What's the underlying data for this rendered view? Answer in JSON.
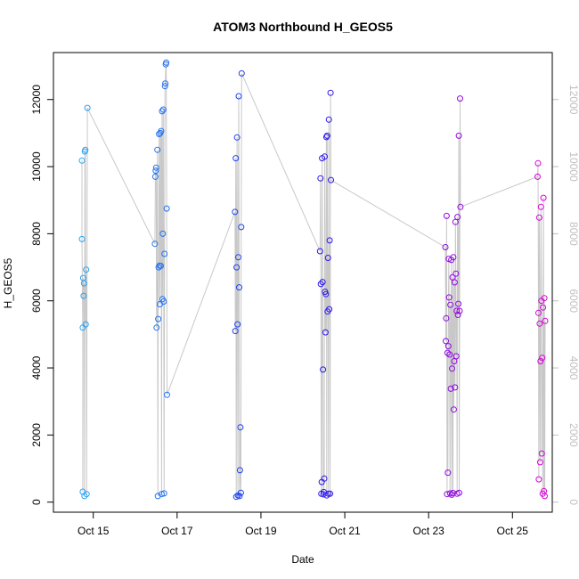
{
  "chart_data": {
    "type": "scatter",
    "title": "ATOM3 Northbound H_GEOS5",
    "xlabel": "Date",
    "ylabel": "H_GEOS5",
    "x_unit": "days since Oct 15",
    "xlim": [
      -0.95,
      10.95
    ],
    "ylim": [
      -300,
      13400
    ],
    "x_ticks": [
      {
        "value": 0,
        "label": "Oct 15"
      },
      {
        "value": 2,
        "label": "Oct 17"
      },
      {
        "value": 4,
        "label": "Oct 19"
      },
      {
        "value": 6,
        "label": "Oct 21"
      },
      {
        "value": 8,
        "label": "Oct 23"
      },
      {
        "value": 10,
        "label": "Oct 25"
      }
    ],
    "y_ticks": [
      0,
      2000,
      4000,
      6000,
      8000,
      10000,
      12000
    ],
    "right_axis_ticks": [
      0,
      2000,
      4000,
      6000,
      8000,
      10000,
      12000
    ],
    "line_color": "#c8c8c8",
    "colors": {
      "start": "#29b6f6",
      "mid": "#1a1aee",
      "end": "#e000d8"
    },
    "points": [
      {
        "x": -0.27,
        "y": 10180
      },
      {
        "x": -0.27,
        "y": 7840
      },
      {
        "x": -0.25,
        "y": 5200
      },
      {
        "x": -0.25,
        "y": 310
      },
      {
        "x": -0.24,
        "y": 6680
      },
      {
        "x": -0.23,
        "y": 6150
      },
      {
        "x": -0.22,
        "y": 6520
      },
      {
        "x": -0.21,
        "y": 180
      },
      {
        "x": -0.2,
        "y": 10450
      },
      {
        "x": -0.19,
        "y": 10500
      },
      {
        "x": -0.18,
        "y": 5300
      },
      {
        "x": -0.17,
        "y": 6930
      },
      {
        "x": -0.16,
        "y": 240
      },
      {
        "x": -0.14,
        "y": 11750
      },
      {
        "x": 1.47,
        "y": 7700
      },
      {
        "x": 1.48,
        "y": 9700
      },
      {
        "x": 1.49,
        "y": 9880
      },
      {
        "x": 1.5,
        "y": 9970
      },
      {
        "x": 1.51,
        "y": 5200
      },
      {
        "x": 1.53,
        "y": 10500
      },
      {
        "x": 1.54,
        "y": 180
      },
      {
        "x": 1.55,
        "y": 5460
      },
      {
        "x": 1.56,
        "y": 7000
      },
      {
        "x": 1.57,
        "y": 10970
      },
      {
        "x": 1.58,
        "y": 7050
      },
      {
        "x": 1.59,
        "y": 5900
      },
      {
        "x": 1.6,
        "y": 11000
      },
      {
        "x": 1.61,
        "y": 7040
      },
      {
        "x": 1.62,
        "y": 11060
      },
      {
        "x": 1.63,
        "y": 240
      },
      {
        "x": 1.64,
        "y": 11650
      },
      {
        "x": 1.65,
        "y": 6050
      },
      {
        "x": 1.66,
        "y": 8000
      },
      {
        "x": 1.67,
        "y": 11700
      },
      {
        "x": 1.68,
        "y": 5980
      },
      {
        "x": 1.69,
        "y": 260
      },
      {
        "x": 1.7,
        "y": 7400
      },
      {
        "x": 1.71,
        "y": 12400
      },
      {
        "x": 1.72,
        "y": 12480
      },
      {
        "x": 1.73,
        "y": 13050
      },
      {
        "x": 1.74,
        "y": 13100
      },
      {
        "x": 1.75,
        "y": 8750
      },
      {
        "x": 1.76,
        "y": 3200
      },
      {
        "x": 3.38,
        "y": 8650
      },
      {
        "x": 3.39,
        "y": 5100
      },
      {
        "x": 3.4,
        "y": 10250
      },
      {
        "x": 3.41,
        "y": 160
      },
      {
        "x": 3.42,
        "y": 7000
      },
      {
        "x": 3.43,
        "y": 10870
      },
      {
        "x": 3.44,
        "y": 5300
      },
      {
        "x": 3.45,
        "y": 200
      },
      {
        "x": 3.46,
        "y": 7300
      },
      {
        "x": 3.47,
        "y": 12100
      },
      {
        "x": 3.48,
        "y": 6400
      },
      {
        "x": 3.49,
        "y": 180
      },
      {
        "x": 3.5,
        "y": 950
      },
      {
        "x": 3.51,
        "y": 2230
      },
      {
        "x": 3.52,
        "y": 280
      },
      {
        "x": 3.53,
        "y": 8200
      },
      {
        "x": 3.54,
        "y": 12780
      },
      {
        "x": 5.41,
        "y": 7480
      },
      {
        "x": 5.42,
        "y": 9650
      },
      {
        "x": 5.43,
        "y": 6500
      },
      {
        "x": 5.44,
        "y": 250
      },
      {
        "x": 5.45,
        "y": 600
      },
      {
        "x": 5.46,
        "y": 10250
      },
      {
        "x": 5.47,
        "y": 6560
      },
      {
        "x": 5.48,
        "y": 3950
      },
      {
        "x": 5.49,
        "y": 230
      },
      {
        "x": 5.5,
        "y": 300
      },
      {
        "x": 5.51,
        "y": 700
      },
      {
        "x": 5.52,
        "y": 10300
      },
      {
        "x": 5.53,
        "y": 6270
      },
      {
        "x": 5.54,
        "y": 5060
      },
      {
        "x": 5.55,
        "y": 6200
      },
      {
        "x": 5.56,
        "y": 10880
      },
      {
        "x": 5.57,
        "y": 200
      },
      {
        "x": 5.58,
        "y": 10920
      },
      {
        "x": 5.59,
        "y": 5680
      },
      {
        "x": 5.6,
        "y": 7280
      },
      {
        "x": 5.61,
        "y": 250
      },
      {
        "x": 5.62,
        "y": 11400
      },
      {
        "x": 5.63,
        "y": 5750
      },
      {
        "x": 5.64,
        "y": 7800
      },
      {
        "x": 5.65,
        "y": 250
      },
      {
        "x": 5.66,
        "y": 12200
      },
      {
        "x": 5.67,
        "y": 9600
      },
      {
        "x": 8.4,
        "y": 7600
      },
      {
        "x": 8.41,
        "y": 4800
      },
      {
        "x": 8.42,
        "y": 5480
      },
      {
        "x": 8.43,
        "y": 8530
      },
      {
        "x": 8.44,
        "y": 240
      },
      {
        "x": 8.45,
        "y": 4450
      },
      {
        "x": 8.46,
        "y": 880
      },
      {
        "x": 8.47,
        "y": 4650
      },
      {
        "x": 8.48,
        "y": 7250
      },
      {
        "x": 8.49,
        "y": 6100
      },
      {
        "x": 8.5,
        "y": 4400
      },
      {
        "x": 8.51,
        "y": 260
      },
      {
        "x": 8.52,
        "y": 5880
      },
      {
        "x": 8.53,
        "y": 3380
      },
      {
        "x": 8.54,
        "y": 7220
      },
      {
        "x": 8.55,
        "y": 220
      },
      {
        "x": 8.56,
        "y": 3980
      },
      {
        "x": 8.57,
        "y": 6700
      },
      {
        "x": 8.58,
        "y": 270
      },
      {
        "x": 8.59,
        "y": 7300
      },
      {
        "x": 8.6,
        "y": 2760
      },
      {
        "x": 8.61,
        "y": 4200
      },
      {
        "x": 8.62,
        "y": 6550
      },
      {
        "x": 8.63,
        "y": 3420
      },
      {
        "x": 8.64,
        "y": 8350
      },
      {
        "x": 8.65,
        "y": 6810
      },
      {
        "x": 8.66,
        "y": 4350
      },
      {
        "x": 8.67,
        "y": 5700
      },
      {
        "x": 8.68,
        "y": 250
      },
      {
        "x": 8.69,
        "y": 8500
      },
      {
        "x": 8.7,
        "y": 5580
      },
      {
        "x": 8.71,
        "y": 5910
      },
      {
        "x": 8.72,
        "y": 10920
      },
      {
        "x": 8.73,
        "y": 280
      },
      {
        "x": 8.74,
        "y": 5700
      },
      {
        "x": 8.75,
        "y": 12030
      },
      {
        "x": 8.76,
        "y": 8800
      },
      {
        "x": 10.6,
        "y": 9700
      },
      {
        "x": 10.61,
        "y": 10100
      },
      {
        "x": 10.62,
        "y": 5640
      },
      {
        "x": 10.63,
        "y": 680
      },
      {
        "x": 10.64,
        "y": 8480
      },
      {
        "x": 10.65,
        "y": 5320
      },
      {
        "x": 10.66,
        "y": 1190
      },
      {
        "x": 10.67,
        "y": 4200
      },
      {
        "x": 10.68,
        "y": 8800
      },
      {
        "x": 10.69,
        "y": 6000
      },
      {
        "x": 10.7,
        "y": 1450
      },
      {
        "x": 10.71,
        "y": 4300
      },
      {
        "x": 10.72,
        "y": 250
      },
      {
        "x": 10.73,
        "y": 5800
      },
      {
        "x": 10.74,
        "y": 9070
      },
      {
        "x": 10.75,
        "y": 330
      },
      {
        "x": 10.76,
        "y": 6080
      },
      {
        "x": 10.77,
        "y": 180
      },
      {
        "x": 10.78,
        "y": 5400
      }
    ]
  }
}
